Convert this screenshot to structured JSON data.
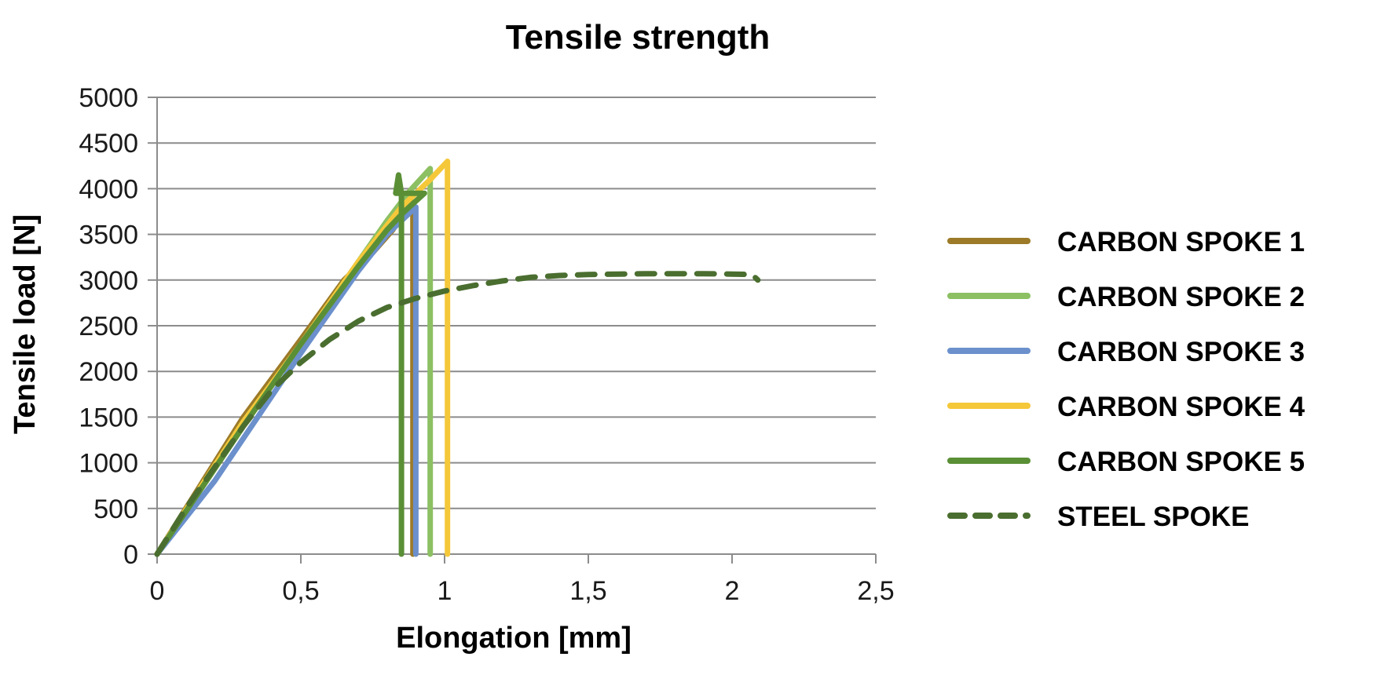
{
  "chart_data": {
    "type": "line",
    "title": "Tensile strength",
    "xlabel": "Elongation [mm]",
    "ylabel": "Tensile load [N]",
    "xlim": [
      0,
      2.5
    ],
    "ylim": [
      0,
      5000
    ],
    "x_ticks": [
      0,
      0.5,
      1,
      1.5,
      2,
      2.5
    ],
    "x_tick_labels": [
      "0",
      "0,5",
      "1",
      "1,5",
      "2",
      "2,5"
    ],
    "y_ticks": [
      0,
      500,
      1000,
      1500,
      2000,
      2500,
      3000,
      3500,
      4000,
      4500,
      5000
    ],
    "y_tick_labels": [
      "0",
      "500",
      "1000",
      "1500",
      "2000",
      "2500",
      "3000",
      "3500",
      "4000",
      "4500",
      "5000"
    ],
    "grid": "horizontal",
    "legend_position": "right",
    "series": [
      {
        "name": "CARBON SPOKE 1",
        "color": "#9c7a28",
        "dash": "solid",
        "points": [
          [
            0,
            0
          ],
          [
            0.3,
            1500
          ],
          [
            0.5,
            2350
          ],
          [
            0.65,
            3000
          ],
          [
            0.75,
            3300
          ],
          [
            0.82,
            3550
          ],
          [
            0.87,
            3800
          ],
          [
            0.89,
            3850
          ],
          [
            0.89,
            0
          ]
        ]
      },
      {
        "name": "CARBON SPOKE 2",
        "color": "#8cc063",
        "dash": "solid",
        "points": [
          [
            0,
            0
          ],
          [
            0.3,
            1450
          ],
          [
            0.5,
            2300
          ],
          [
            0.7,
            3200
          ],
          [
            0.8,
            3650
          ],
          [
            0.88,
            3980
          ],
          [
            0.95,
            4220
          ],
          [
            0.95,
            0
          ]
        ]
      },
      {
        "name": "CARBON SPOKE 3",
        "color": "#6b90cc",
        "dash": "solid",
        "points": [
          [
            0,
            0
          ],
          [
            0.2,
            800
          ],
          [
            0.5,
            2200
          ],
          [
            0.7,
            3100
          ],
          [
            0.8,
            3500
          ],
          [
            0.9,
            3800
          ],
          [
            0.9,
            0
          ]
        ]
      },
      {
        "name": "CARBON SPOKE 4",
        "color": "#f5c83a",
        "dash": "solid",
        "points": [
          [
            0,
            0
          ],
          [
            0.3,
            1450
          ],
          [
            0.5,
            2300
          ],
          [
            0.7,
            3200
          ],
          [
            0.85,
            3800
          ],
          [
            0.95,
            4100
          ],
          [
            1.01,
            4300
          ],
          [
            1.01,
            0
          ]
        ]
      },
      {
        "name": "CARBON SPOKE 5",
        "color": "#5a8f36",
        "dash": "solid",
        "points": [
          [
            0,
            0
          ],
          [
            0.3,
            1400
          ],
          [
            0.5,
            2300
          ],
          [
            0.7,
            3150
          ],
          [
            0.8,
            3550
          ],
          [
            0.86,
            3750
          ],
          [
            0.93,
            3950
          ],
          [
            0.83,
            3950
          ],
          [
            0.84,
            4150
          ],
          [
            0.85,
            3950
          ],
          [
            0.85,
            0
          ]
        ]
      },
      {
        "name": "STEEL SPOKE",
        "color": "#4a6e2f",
        "dash": "dashed",
        "points": [
          [
            0,
            0
          ],
          [
            0.1,
            500
          ],
          [
            0.2,
            950
          ],
          [
            0.3,
            1400
          ],
          [
            0.4,
            1800
          ],
          [
            0.5,
            2100
          ],
          [
            0.6,
            2350
          ],
          [
            0.7,
            2550
          ],
          [
            0.8,
            2700
          ],
          [
            0.9,
            2800
          ],
          [
            1.0,
            2880
          ],
          [
            1.1,
            2940
          ],
          [
            1.2,
            2990
          ],
          [
            1.3,
            3030
          ],
          [
            1.4,
            3050
          ],
          [
            1.5,
            3060
          ],
          [
            1.6,
            3065
          ],
          [
            1.7,
            3070
          ],
          [
            1.8,
            3070
          ],
          [
            1.9,
            3070
          ],
          [
            2.0,
            3065
          ],
          [
            2.07,
            3060
          ],
          [
            2.09,
            3000
          ]
        ]
      }
    ]
  }
}
